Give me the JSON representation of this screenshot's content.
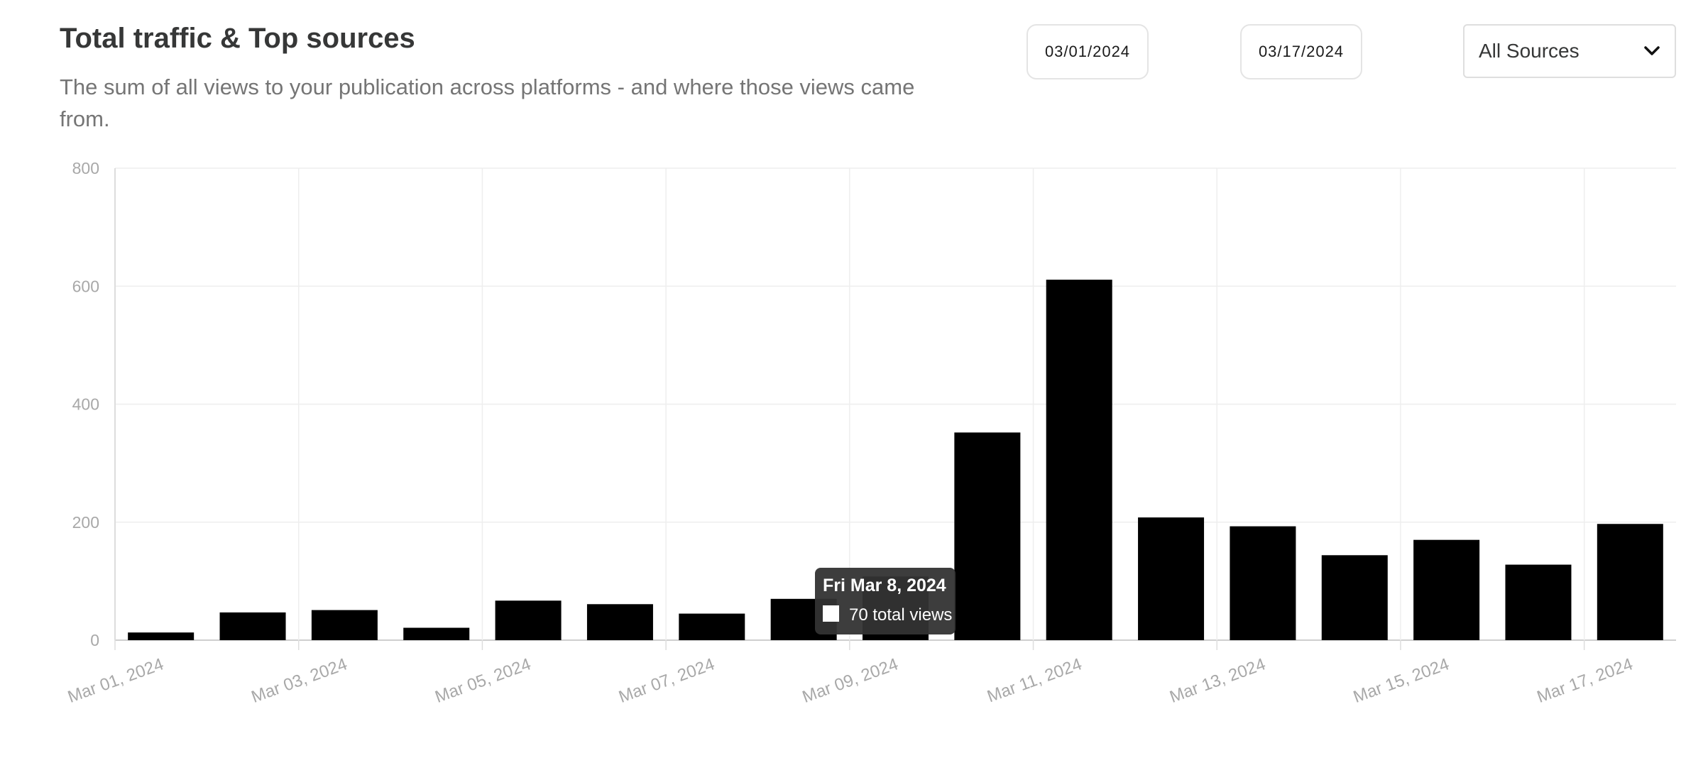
{
  "header": {
    "title": "Total traffic & Top sources",
    "subtitle": "The sum of all views to your publication across platforms - and where those views came from."
  },
  "filters": {
    "start_date": "03/01/2024",
    "end_date": "03/17/2024",
    "source_select": "All Sources",
    "source_select_icon": "chevron-down-icon"
  },
  "tooltip": {
    "date": "Fri Mar 8, 2024",
    "value_label": "70 total views"
  },
  "chart_data": {
    "type": "bar",
    "categories": [
      "Mar 01, 2024",
      "Mar 02, 2024",
      "Mar 03, 2024",
      "Mar 04, 2024",
      "Mar 05, 2024",
      "Mar 06, 2024",
      "Mar 07, 2024",
      "Mar 08, 2024",
      "Mar 09, 2024",
      "Mar 10, 2024",
      "Mar 11, 2024",
      "Mar 12, 2024",
      "Mar 13, 2024",
      "Mar 14, 2024",
      "Mar 15, 2024",
      "Mar 16, 2024",
      "Mar 17, 2024"
    ],
    "values": [
      13,
      47,
      51,
      21,
      67,
      61,
      45,
      70,
      108,
      352,
      611,
      208,
      193,
      144,
      170,
      128,
      197
    ],
    "x_tick_labels": [
      "Mar 01, 2024",
      "Mar 03, 2024",
      "Mar 05, 2024",
      "Mar 07, 2024",
      "Mar 09, 2024",
      "Mar 11, 2024",
      "Mar 13, 2024",
      "Mar 15, 2024",
      "Mar 17, 2024"
    ],
    "y_ticks": [
      0,
      200,
      400,
      600,
      800
    ],
    "ylim": [
      0,
      800
    ],
    "grid": true,
    "bar_color": "#000000",
    "title": "",
    "xlabel": "",
    "ylabel": ""
  }
}
